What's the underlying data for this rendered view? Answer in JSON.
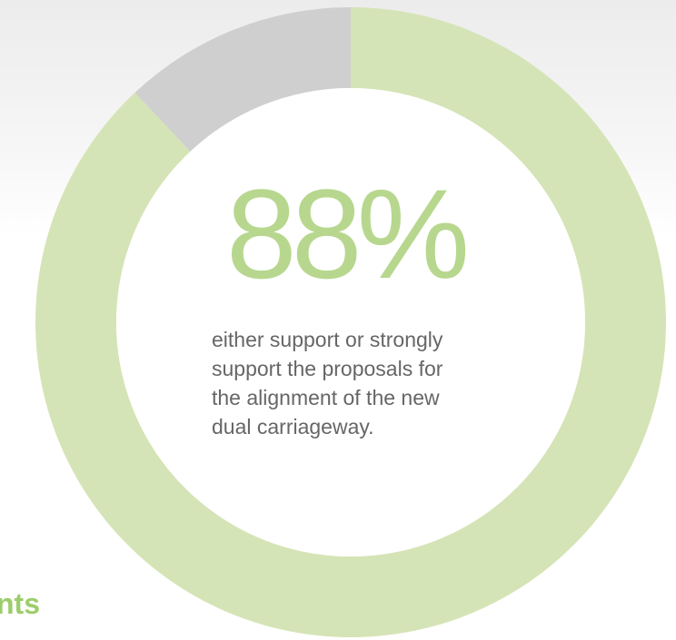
{
  "colors": {
    "support": "#d5e4b6",
    "other": "#cfcfcf",
    "accent": "#b7d78e",
    "caption": "#666666",
    "heading": "#9ccd6b"
  },
  "chart_data": {
    "type": "pie",
    "variant": "donut",
    "headline": "88%",
    "caption_lines": [
      "either support or strongly",
      "support the proposals for",
      "the alignment of the new",
      "dual carriageway."
    ],
    "slices": [
      {
        "value": 88,
        "color": "#d5e4b6"
      },
      {
        "value": 12,
        "color": "#cfcfcf"
      }
    ]
  },
  "section": {
    "heading": "nts"
  }
}
